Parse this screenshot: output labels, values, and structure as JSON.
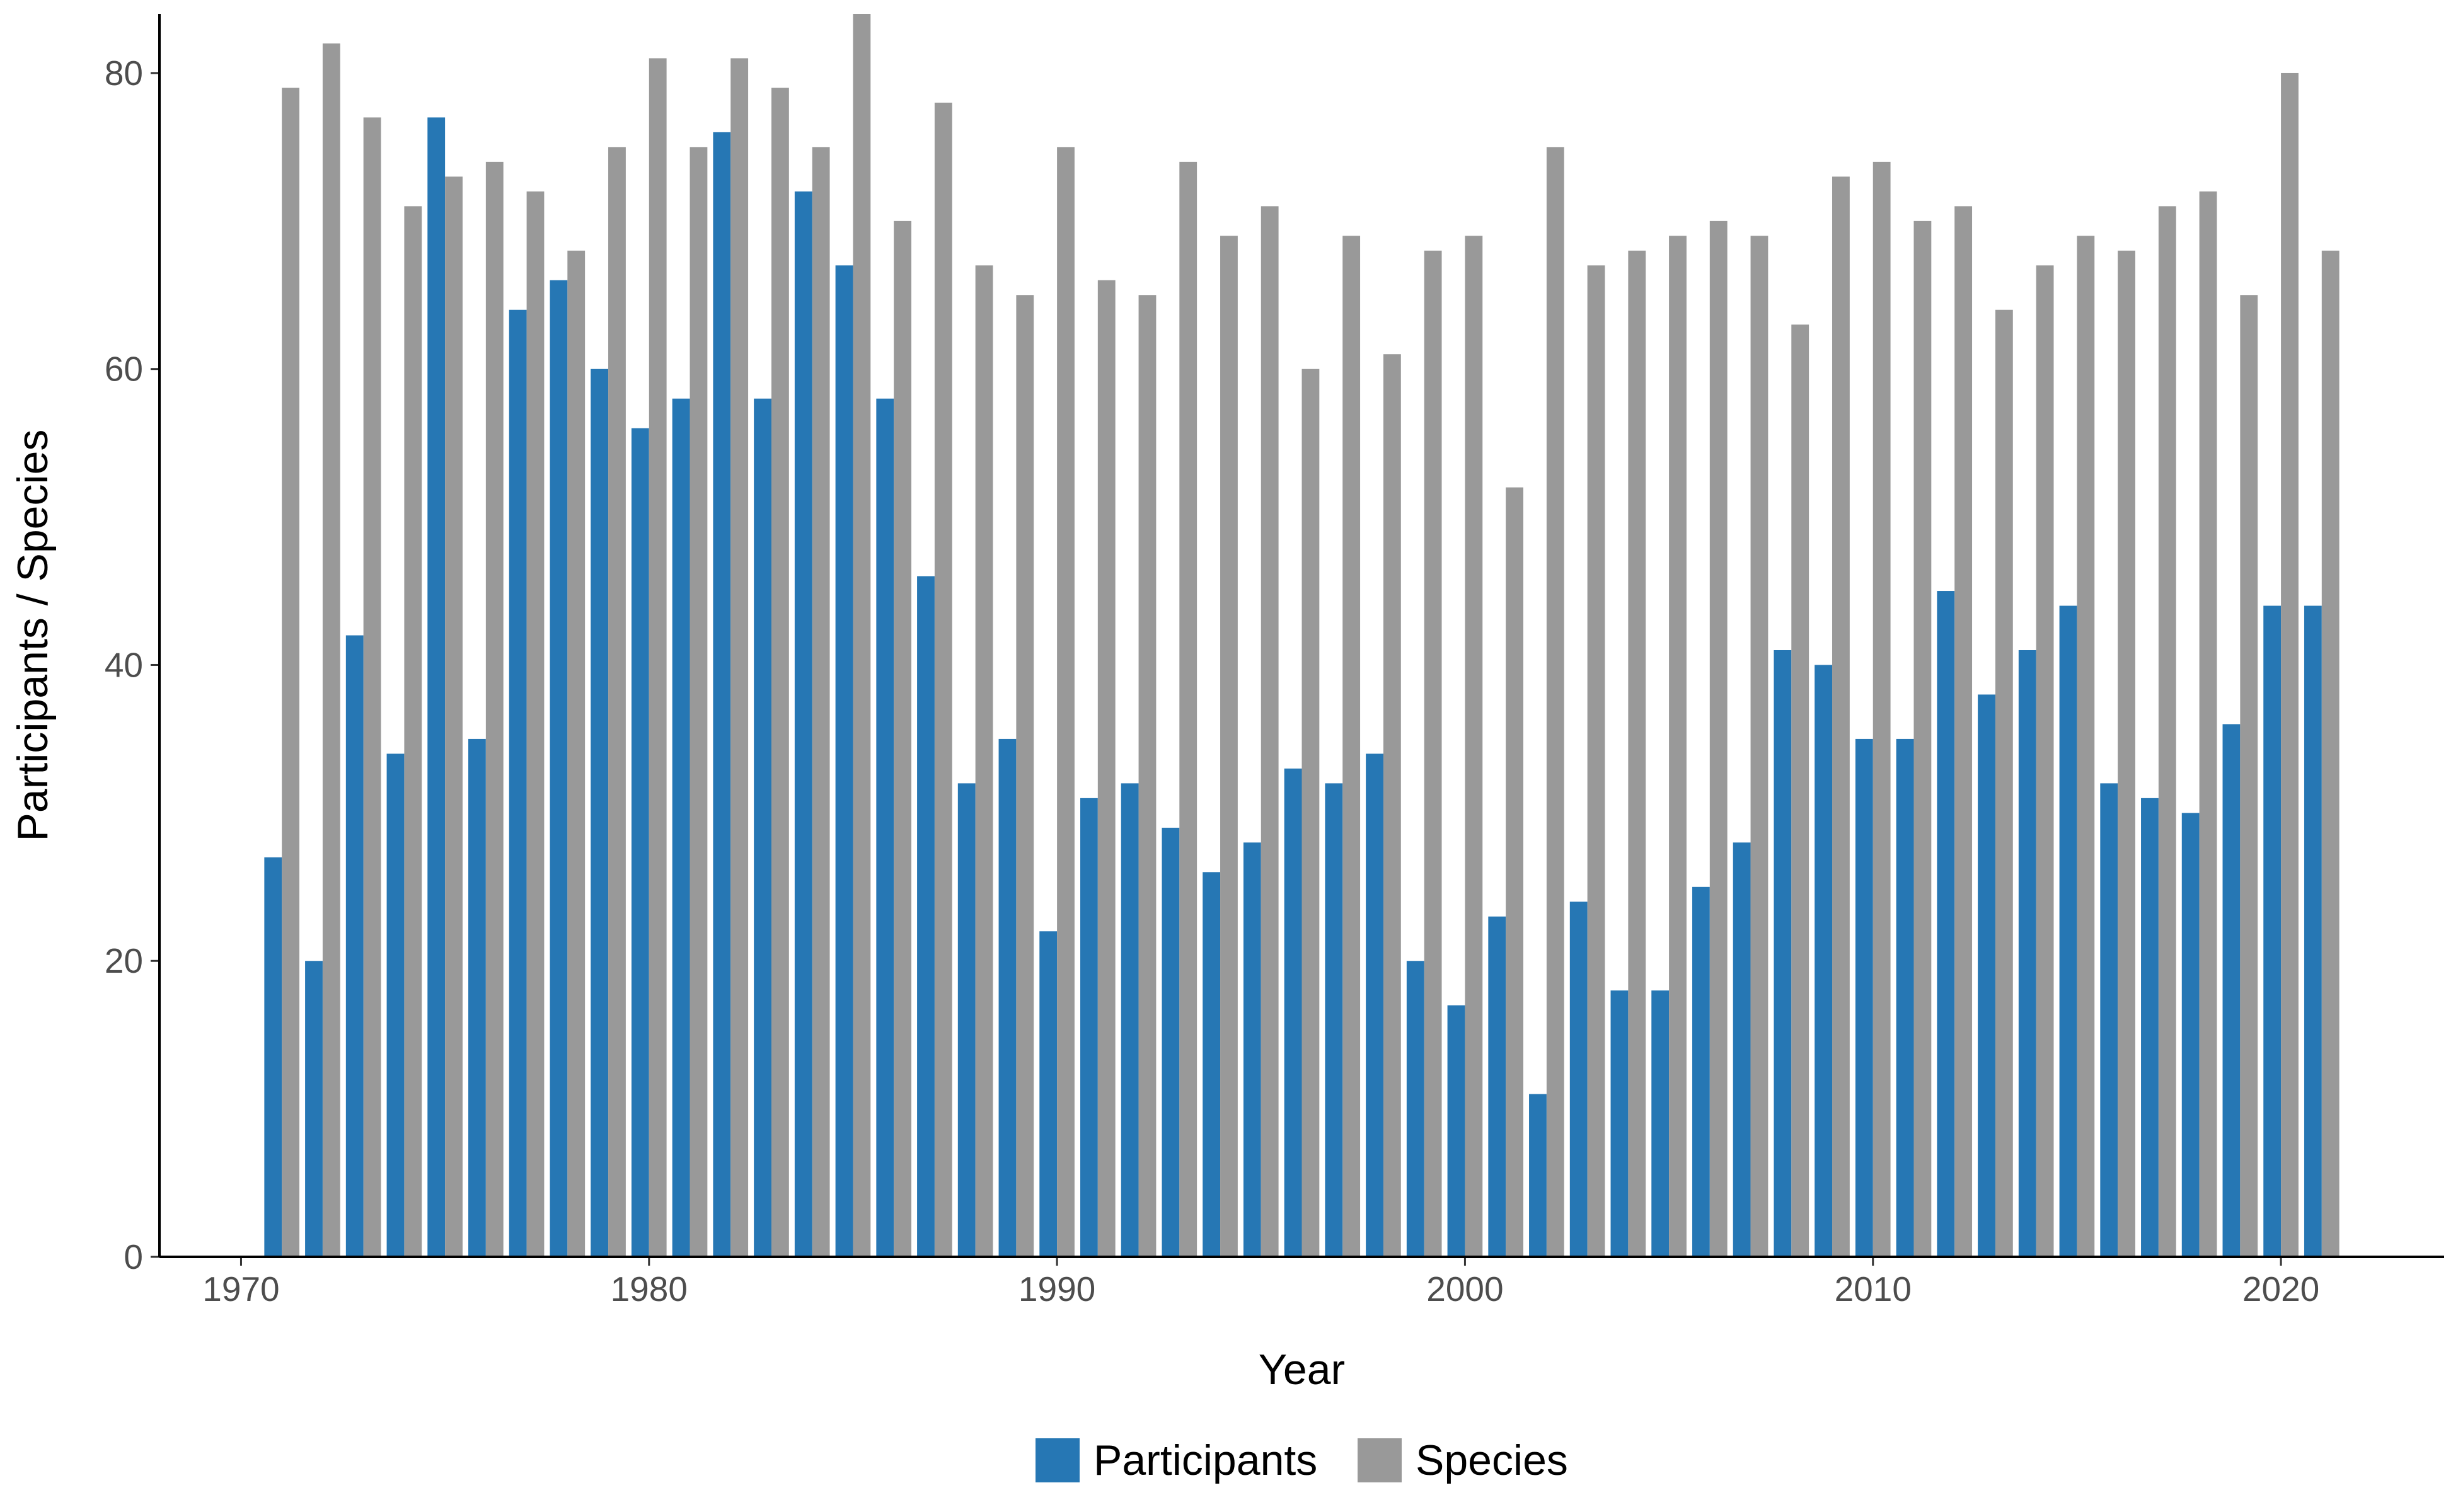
{
  "chart_data": {
    "type": "bar",
    "title": "",
    "xlabel": "Year",
    "ylabel": "Participants / Species",
    "xlim": [
      1968,
      2024
    ],
    "ylim": [
      0,
      84
    ],
    "x_ticks": [
      1970,
      1980,
      1990,
      2000,
      2010,
      2020
    ],
    "y_ticks": [
      0,
      20,
      40,
      60,
      80
    ],
    "grid": false,
    "legend_position": "bottom",
    "categories": [
      1971,
      1972,
      1973,
      1974,
      1975,
      1976,
      1977,
      1978,
      1979,
      1980,
      1981,
      1982,
      1983,
      1984,
      1985,
      1986,
      1987,
      1988,
      1989,
      1990,
      1991,
      1992,
      1993,
      1994,
      1995,
      1996,
      1997,
      1998,
      1999,
      2000,
      2001,
      2002,
      2003,
      2004,
      2005,
      2006,
      2007,
      2008,
      2009,
      2010,
      2011,
      2012,
      2013,
      2014,
      2015,
      2016,
      2017,
      2018,
      2019,
      2020,
      2021
    ],
    "series": [
      {
        "name": "Participants",
        "color": "#2677B4",
        "values": [
          27,
          20,
          42,
          34,
          77,
          35,
          64,
          66,
          60,
          56,
          58,
          76,
          58,
          72,
          67,
          58,
          46,
          32,
          35,
          22,
          31,
          32,
          29,
          26,
          28,
          33,
          32,
          34,
          20,
          17,
          23,
          11,
          24,
          18,
          18,
          25,
          28,
          41,
          40,
          35,
          35,
          45,
          38,
          41,
          44,
          32,
          31,
          30,
          36,
          44,
          44
        ]
      },
      {
        "name": "Species",
        "color": "#999999",
        "values": [
          79,
          82,
          77,
          71,
          73,
          74,
          72,
          68,
          75,
          81,
          75,
          81,
          79,
          75,
          84,
          70,
          78,
          67,
          65,
          75,
          66,
          65,
          74,
          69,
          71,
          60,
          69,
          61,
          68,
          69,
          52,
          75,
          67,
          68,
          69,
          70,
          69,
          63,
          73,
          74,
          70,
          71,
          64,
          67,
          69,
          68,
          71,
          72,
          65,
          80,
          68
        ]
      }
    ]
  }
}
